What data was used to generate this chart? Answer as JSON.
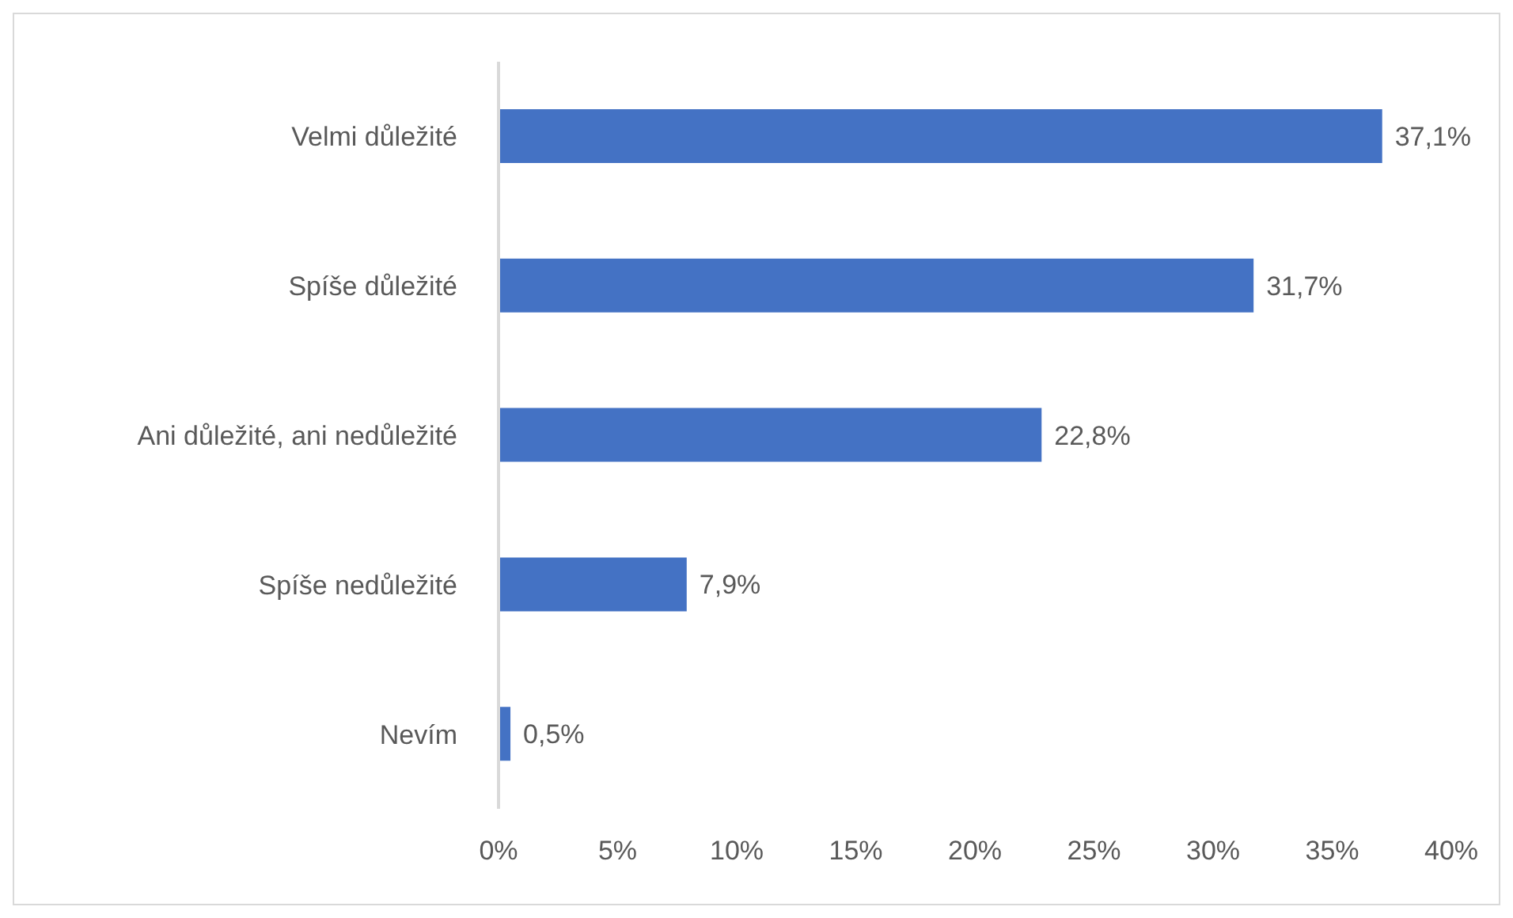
{
  "chart_data": {
    "type": "bar",
    "orientation": "horizontal",
    "categories": [
      "Velmi důležité",
      "Spíše důležité",
      "Ani důležité, ani nedůležité",
      "Spíše nedůležité",
      "Nevím"
    ],
    "values": [
      37.1,
      31.7,
      22.8,
      7.9,
      0.5
    ],
    "value_labels": [
      "37,1%",
      "31,7%",
      "22,8%",
      "7,9%",
      "0,5%"
    ],
    "color": "#4472c4",
    "xlim": [
      0,
      40
    ],
    "xticks": [
      {
        "value": 0,
        "label": "0%"
      },
      {
        "value": 5,
        "label": "5%"
      },
      {
        "value": 10,
        "label": "10%"
      },
      {
        "value": 15,
        "label": "15%"
      },
      {
        "value": 20,
        "label": "20%"
      },
      {
        "value": 25,
        "label": "25%"
      },
      {
        "value": 30,
        "label": "30%"
      },
      {
        "value": 35,
        "label": "35%"
      },
      {
        "value": 40,
        "label": "40%"
      }
    ],
    "grid": false,
    "legend": false
  }
}
